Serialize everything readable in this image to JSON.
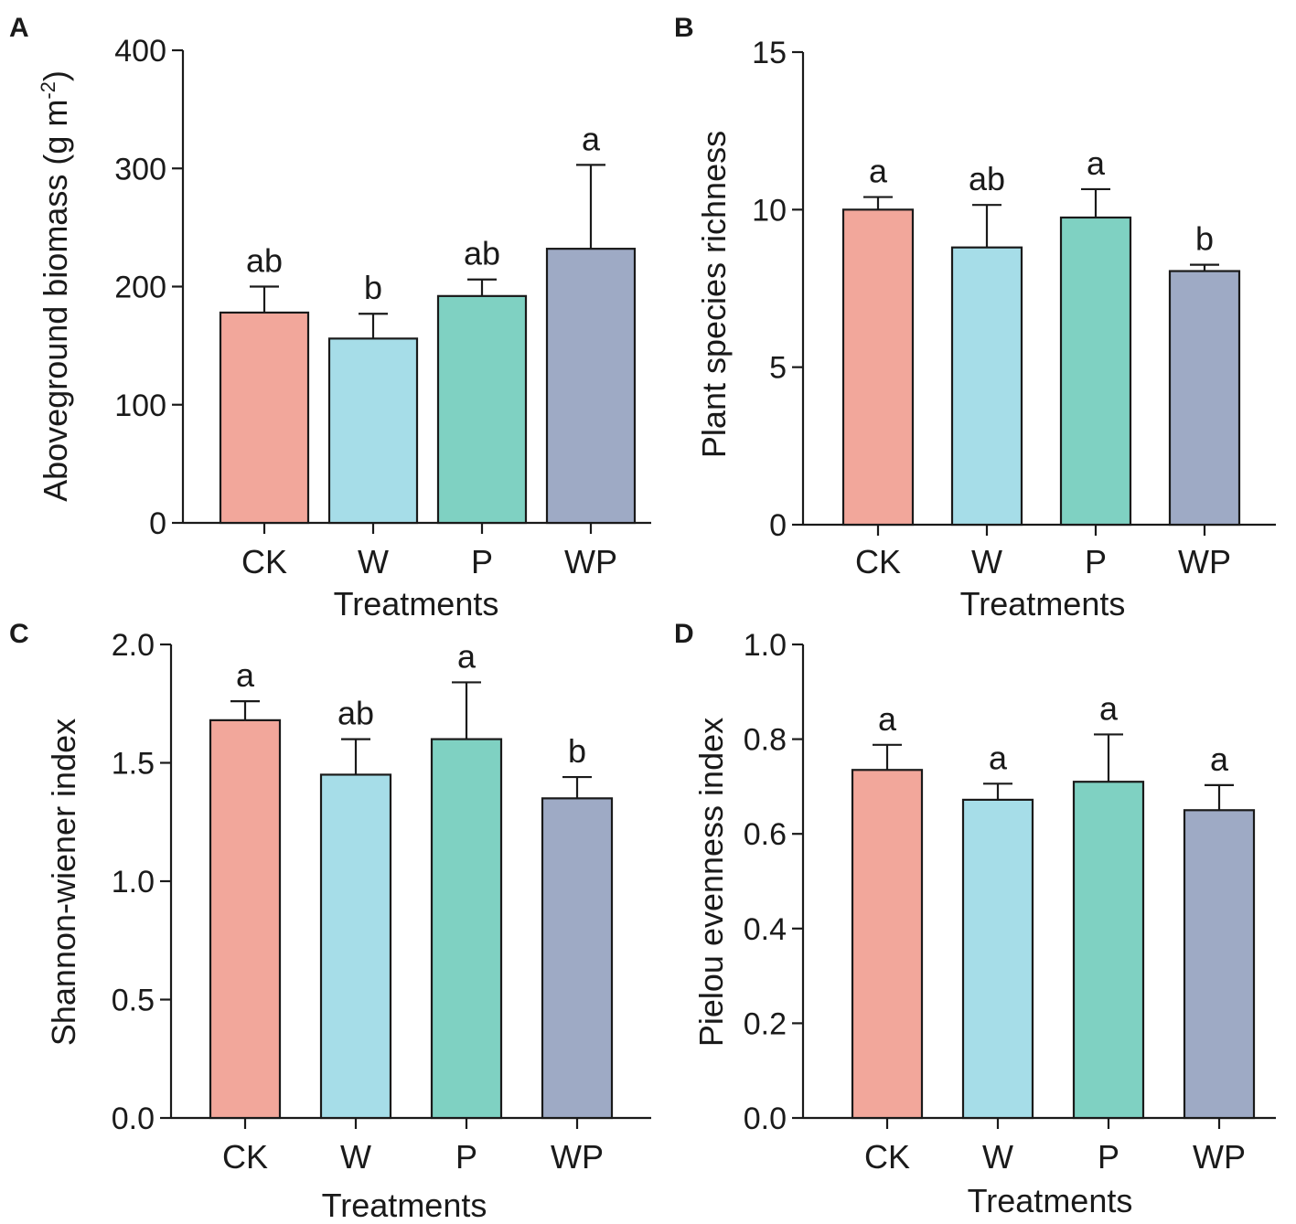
{
  "colors": {
    "CK": "#f2a79b",
    "W": "#a6dde8",
    "P": "#7fd1c2",
    "WP": "#9eaac5"
  },
  "chart_data": [
    {
      "panel": "A",
      "type": "bar",
      "categories": [
        "CK",
        "W",
        "P",
        "WP"
      ],
      "values": [
        178,
        156,
        192,
        232
      ],
      "error_upper": [
        200,
        177,
        206,
        303
      ],
      "significance": [
        "ab",
        "b",
        "ab",
        "a"
      ],
      "ylabel_main": "Aboveground biomass (g m",
      "ylabel_sup": "-2",
      "ylabel_end": ")",
      "xlabel": "Treatments",
      "ylim": [
        0,
        400
      ],
      "yticks": [
        0,
        100,
        200,
        300,
        400
      ],
      "ytick_labels": [
        "0",
        "100",
        "200",
        "300",
        "400"
      ]
    },
    {
      "panel": "B",
      "type": "bar",
      "categories": [
        "CK",
        "W",
        "P",
        "WP"
      ],
      "values": [
        10.0,
        8.8,
        9.75,
        8.05
      ],
      "error_upper": [
        10.4,
        10.15,
        10.65,
        8.25
      ],
      "significance": [
        "a",
        "ab",
        "a",
        "b"
      ],
      "ylabel": "Plant species richness",
      "xlabel": "Treatments",
      "ylim": [
        0,
        15
      ],
      "yticks": [
        0,
        5,
        10,
        15
      ],
      "ytick_labels": [
        "0",
        "5",
        "10",
        "15"
      ]
    },
    {
      "panel": "C",
      "type": "bar",
      "categories": [
        "CK",
        "W",
        "P",
        "WP"
      ],
      "values": [
        1.68,
        1.45,
        1.6,
        1.35
      ],
      "error_upper": [
        1.76,
        1.6,
        1.84,
        1.44
      ],
      "significance": [
        "a",
        "ab",
        "a",
        "b"
      ],
      "ylabel": "Shannon-wiener index",
      "xlabel": "Treatments",
      "ylim": [
        0,
        2.0
      ],
      "yticks": [
        0,
        0.5,
        1.0,
        1.5,
        2.0
      ],
      "ytick_labels": [
        "0.0",
        "0.5",
        "1.0",
        "1.5",
        "2.0"
      ]
    },
    {
      "panel": "D",
      "type": "bar",
      "categories": [
        "CK",
        "W",
        "P",
        "WP"
      ],
      "values": [
        0.735,
        0.672,
        0.71,
        0.65
      ],
      "error_upper": [
        0.788,
        0.706,
        0.81,
        0.703
      ],
      "significance": [
        "a",
        "a",
        "a",
        "a"
      ],
      "ylabel": "Pielou evenness index",
      "xlabel": "Treatments",
      "ylim": [
        0,
        1.0
      ],
      "yticks": [
        0,
        0.2,
        0.4,
        0.6,
        0.8,
        1.0
      ],
      "ytick_labels": [
        "0.0",
        "0.2",
        "0.4",
        "0.6",
        "0.8",
        "1.0"
      ]
    }
  ]
}
